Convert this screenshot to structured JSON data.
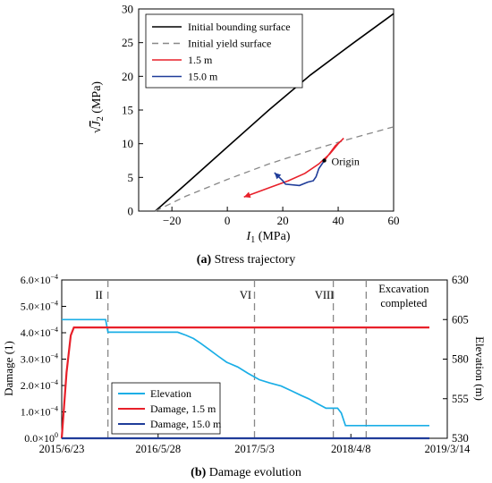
{
  "colors": {
    "bounding": "#000000",
    "yield": "#888888",
    "red": "#e8202a",
    "blue": "#1f3c99",
    "cyan": "#1aaee6",
    "phase": "#888888"
  },
  "chart_data": [
    {
      "type": "line",
      "caption_label": "(a)",
      "caption_text": " Stress trajectory",
      "xlabel_var": "I",
      "xlabel_sub": "1",
      "xlabel_unit": " (MPa)",
      "ylabel_var": "J",
      "ylabel_sub": "2",
      "ylabel_unit": " (MPa)",
      "xlim": [
        -32,
        60
      ],
      "ylim": [
        0,
        30
      ],
      "xticks": [
        -20,
        0,
        20,
        40,
        60
      ],
      "yticks": [
        0,
        5,
        10,
        15,
        20,
        25,
        30
      ],
      "xtick_labels": [
        "−20",
        "0",
        "20",
        "40",
        "60"
      ],
      "ytick_labels": [
        "0",
        "5",
        "10",
        "15",
        "20",
        "25",
        "30"
      ],
      "legend_position": "top-left",
      "annotation": {
        "text": "Origin",
        "x": 35,
        "y": 7.5
      },
      "series": [
        {
          "name": "Initial bounding surface",
          "style": "solid",
          "color_key": "bounding",
          "x": [
            -26,
            -15,
            0,
            15,
            30,
            45,
            60
          ],
          "y": [
            0,
            4,
            9.5,
            15,
            20.2,
            24.8,
            29.3
          ]
        },
        {
          "name": "Initial yield surface",
          "style": "dashed",
          "color_key": "yield",
          "x": [
            -26,
            -15,
            0,
            15,
            30,
            45,
            60
          ],
          "y": [
            0,
            2.2,
            4.7,
            7,
            9,
            10.8,
            12.5
          ]
        },
        {
          "name": "1.5 m",
          "style": "solid",
          "color_key": "red",
          "x": [
            35,
            37,
            39,
            41,
            42,
            40,
            37,
            33,
            28,
            22,
            16,
            10,
            6
          ],
          "y": [
            7.5,
            8.6,
            9.7,
            10.4,
            10.8,
            10,
            8.5,
            7,
            5.6,
            4.5,
            3.6,
            2.7,
            2.1
          ]
        },
        {
          "name": "15.0 m",
          "style": "solid",
          "color_key": "blue",
          "x": [
            35,
            33,
            32,
            31,
            29,
            26,
            21,
            20,
            18,
            17
          ],
          "y": [
            7.5,
            6.3,
            5.1,
            4.5,
            4.3,
            3.8,
            4.0,
            4.5,
            5.3,
            5.7
          ]
        }
      ]
    },
    {
      "type": "line",
      "caption_label": "(b)",
      "caption_text": " Damage evolution",
      "ylabel": "Damage (1)",
      "y2label": "Elevation (m)",
      "x_domain_dates": [
        "2015-06-23",
        "2019-03-14"
      ],
      "xticks_dates": [
        "2015-06-23",
        "2016-05-28",
        "2017-05-03",
        "2018-04-08",
        "2019-03-14"
      ],
      "xtick_labels": [
        "2015/6/23",
        "2016/5/28",
        "2017/5/3",
        "2018/4/8",
        "2019/3/14"
      ],
      "ylim": [
        0,
        0.0006
      ],
      "yticks": [
        0,
        0.0001,
        0.0002,
        0.0003,
        0.0004,
        0.0005,
        0.0006
      ],
      "ytick_labels": [
        {
          "m": "0.0",
          "e": "0"
        },
        {
          "m": "1.0",
          "e": "−4"
        },
        {
          "m": "2.0",
          "e": "−4"
        },
        {
          "m": "3.0",
          "e": "−4"
        },
        {
          "m": "4.0",
          "e": "−4"
        },
        {
          "m": "5.0",
          "e": "−4"
        },
        {
          "m": "6.0",
          "e": "−4"
        }
      ],
      "y2lim": [
        530,
        630
      ],
      "y2ticks": [
        530,
        555,
        580,
        605,
        630
      ],
      "y2tick_labels": [
        "530",
        "555",
        "580",
        "605",
        "630"
      ],
      "legend_position": "bottom-left",
      "phases": [
        {
          "label": "II",
          "date": "2015-12-03"
        },
        {
          "label": "VI",
          "date": "2017-05-03"
        },
        {
          "label": "VIII",
          "date": "2018-02-05"
        },
        {
          "label_lines": [
            "Excavation",
            "completed"
          ],
          "date": "2018-06-01"
        }
      ],
      "series": [
        {
          "name": "Elevation",
          "axis": "right",
          "color_key": "cyan",
          "x": [
            "2015-06-23",
            "2015-11-25",
            "2015-12-03",
            "2016-07-25",
            "2016-08-05",
            "2016-09-05",
            "2016-09-30",
            "2016-10-25",
            "2016-11-25",
            "2016-12-25",
            "2017-01-25",
            "2017-03-05",
            "2017-04-10",
            "2017-05-20",
            "2017-06-25",
            "2017-08-05",
            "2017-09-10",
            "2017-10-15",
            "2017-11-10",
            "2017-12-10",
            "2018-01-10",
            "2018-02-20",
            "2018-03-05",
            "2018-03-20",
            "2019-01-10"
          ],
          "y": [
            605,
            605,
            597,
            597,
            597,
            595,
            593,
            590,
            586,
            582,
            578,
            575,
            571,
            567,
            565,
            563,
            560,
            557,
            555,
            552,
            549,
            549,
            546,
            538,
            538
          ]
        },
        {
          "name": "Damage, 1.5 m",
          "axis": "left",
          "color_key": "red",
          "x": [
            "2015-06-23",
            "2015-07-10",
            "2015-07-25",
            "2015-08-05",
            "2015-09-01",
            "2019-01-10"
          ],
          "y": [
            0,
            0.00025,
            0.00039,
            0.00042,
            0.00042,
            0.00042
          ]
        },
        {
          "name": "Damage, 15.0 m",
          "axis": "left",
          "color_key": "blue",
          "x": [
            "2015-06-23",
            "2019-01-10"
          ],
          "y": [
            0,
            0
          ]
        }
      ]
    }
  ]
}
